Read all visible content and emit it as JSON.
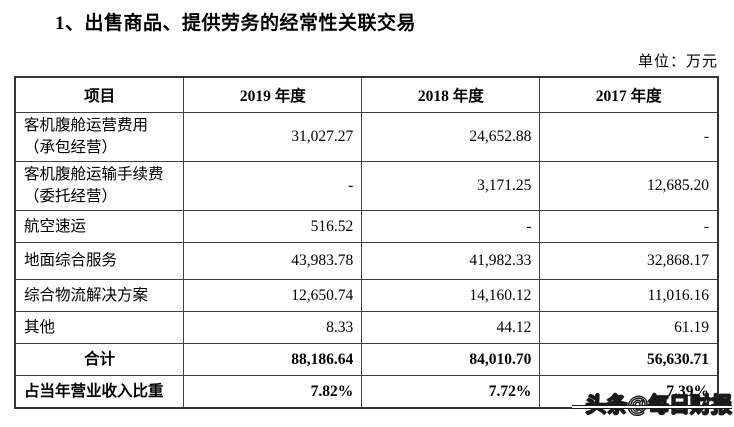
{
  "page": {
    "title": "1、出售商品、提供劳务的经常性关联交易",
    "unit_label": "单位：万元",
    "watermark": "头条@每日财报"
  },
  "table": {
    "columns": [
      "项目",
      "2019 年度",
      "2018 年度",
      "2017 年度"
    ],
    "rows": [
      {
        "label": "客机腹舱运营费用\n（承包经营）",
        "values": [
          "31,027.27",
          "24,652.88",
          "-"
        ]
      },
      {
        "label": "客机腹舱运输手续费\n（委托经营）",
        "values": [
          "-",
          "3,171.25",
          "12,685.20"
        ]
      },
      {
        "label": "航空速运",
        "values": [
          "516.52",
          "-",
          "-"
        ]
      },
      {
        "label": "地面综合服务",
        "values": [
          "43,983.78",
          "41,982.33",
          "32,868.17"
        ]
      },
      {
        "label": "综合物流解决方案",
        "values": [
          "12,650.74",
          "14,160.12",
          "11,016.16"
        ]
      },
      {
        "label": "其他",
        "values": [
          "8.33",
          "44.12",
          "61.19"
        ]
      },
      {
        "label": "合计",
        "values": [
          "88,186.64",
          "84,010.70",
          "56,630.71"
        ]
      },
      {
        "label": "占当年营业收入比重",
        "values": [
          "7.82%",
          "7.72%",
          "7.39%"
        ]
      }
    ]
  },
  "colors": {
    "background": "#ffffff",
    "text": "#000000",
    "table_border": "#3f3f3f",
    "watermark_fill": "#ffffff",
    "watermark_outline": "#1a1a1a"
  }
}
